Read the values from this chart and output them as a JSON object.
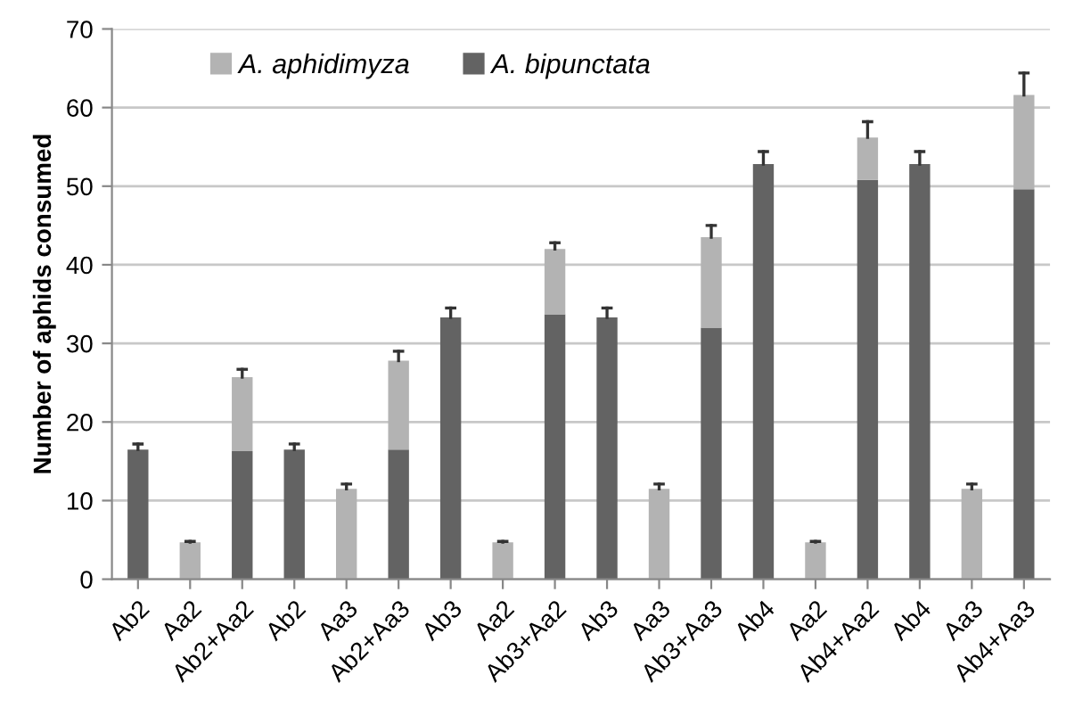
{
  "chart_data": {
    "type": "bar",
    "stacked": true,
    "ylabel": "Number of aphids consumed",
    "categories": [
      "Ab2",
      "Aa2",
      "Ab2+Aa2",
      "Ab2",
      "Aa3",
      "Ab2+Aa3",
      "Ab3",
      "Aa2",
      "Ab3+Aa2",
      "Ab3",
      "Aa3",
      "Ab3+Aa3",
      "Ab4",
      "Aa2",
      "Ab4+Aa2",
      "Ab4",
      "Aa3",
      "Ab4+Aa3"
    ],
    "series": [
      {
        "name": "A. bipunctata",
        "color": "#636363",
        "values": [
          16.5,
          null,
          16.3,
          16.5,
          null,
          16.5,
          33.3,
          null,
          33.7,
          33.3,
          null,
          32,
          52.8,
          null,
          50.8,
          52.8,
          null,
          49.6
        ],
        "errors": [
          [
            16.5,
            17.2
          ],
          null,
          null,
          [
            16.5,
            17.2
          ],
          null,
          null,
          [
            33.3,
            34.5
          ],
          null,
          null,
          [
            33.3,
            34.5
          ],
          null,
          null,
          [
            52.8,
            54.4
          ],
          null,
          null,
          [
            52.8,
            54.4
          ],
          null,
          null
        ]
      },
      {
        "name": "A. aphidimyza",
        "color": "#b3b3b3",
        "values": [
          null,
          4.7,
          9.4,
          null,
          11.5,
          11.3,
          null,
          4.7,
          8.3,
          null,
          11.5,
          11.5,
          null,
          4.7,
          5.4,
          null,
          11.5,
          12.0
        ],
        "errors": [
          null,
          [
            4.7,
            4.8
          ],
          [
            25.7,
            26.7
          ],
          null,
          [
            11.5,
            12.1
          ],
          [
            27.8,
            29.0
          ],
          null,
          [
            4.7,
            4.8
          ],
          [
            42.0,
            42.8
          ],
          null,
          [
            11.5,
            12.1
          ],
          [
            43.5,
            45.0
          ],
          null,
          [
            4.7,
            4.8
          ],
          [
            56.2,
            58.2
          ],
          null,
          [
            11.5,
            12.1
          ],
          [
            61.6,
            64.4
          ]
        ]
      }
    ],
    "ylim": [
      0,
      70
    ],
    "yticks": [
      0,
      10,
      20,
      30,
      40,
      50,
      60,
      70
    ],
    "grid": "y",
    "legend": "top left"
  }
}
